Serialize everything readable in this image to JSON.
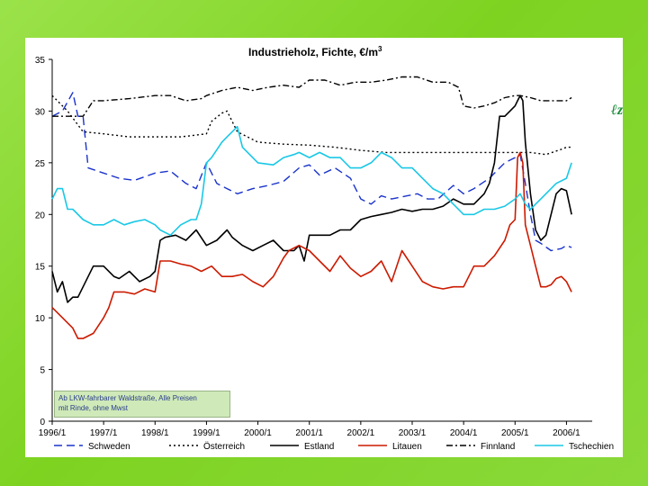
{
  "chart_data": {
    "type": "line",
    "title": "Industrieholz, Fichte, €/m",
    "title_superscript": "3",
    "xlabel": "",
    "ylabel": "",
    "ylim": [
      0,
      35
    ],
    "yticks": [
      0,
      5,
      10,
      15,
      20,
      25,
      30,
      35
    ],
    "xlim": [
      1996.0,
      2006.5
    ],
    "xticks": [
      {
        "value": 1996.0,
        "label": "1996/1"
      },
      {
        "value": 1997.0,
        "label": "1997/1"
      },
      {
        "value": 1998.0,
        "label": "1998/1"
      },
      {
        "value": 1999.0,
        "label": "1999/1"
      },
      {
        "value": 2000.0,
        "label": "2000/1"
      },
      {
        "value": 2001.0,
        "label": "2001/1"
      },
      {
        "value": 2002.0,
        "label": "2002/1"
      },
      {
        "value": 2003.0,
        "label": "2003/1"
      },
      {
        "value": 2004.0,
        "label": "2004/1"
      },
      {
        "value": 2005.0,
        "label": "2005/1"
      },
      {
        "value": 2006.0,
        "label": "2006/1"
      }
    ],
    "legend_position": "bottom",
    "grid": false,
    "series": [
      {
        "name": "Schweden",
        "color": "#1a33cc",
        "style": "dashed",
        "x": [
          1996.0,
          1996.2,
          1996.4,
          1996.5,
          1996.6,
          1996.7,
          1997.0,
          1997.3,
          1997.6,
          1998.0,
          1998.3,
          1998.6,
          1998.8,
          1999.0,
          1999.2,
          1999.4,
          1999.6,
          1999.9,
          2000.2,
          2000.5,
          2000.8,
          2001.0,
          2001.2,
          2001.5,
          2001.8,
          2002.0,
          2002.2,
          2002.4,
          2002.6,
          2002.9,
          2003.1,
          2003.3,
          2003.5,
          2003.8,
          2004.0,
          2004.2,
          2004.5,
          2004.8,
          2005.0,
          2005.1,
          2005.2,
          2005.3,
          2005.4,
          2005.5,
          2005.7,
          2005.9,
          2006.0,
          2006.1
        ],
        "values": [
          29.5,
          30.0,
          31.8,
          29.5,
          29.5,
          24.5,
          24.0,
          23.5,
          23.3,
          24.0,
          24.2,
          23.0,
          22.5,
          25.0,
          23.0,
          22.5,
          22.0,
          22.5,
          22.8,
          23.2,
          24.5,
          24.8,
          23.8,
          24.5,
          23.5,
          21.5,
          21.0,
          21.8,
          21.5,
          21.8,
          22.0,
          21.5,
          21.5,
          22.8,
          22.0,
          22.5,
          23.5,
          25.0,
          25.5,
          25.8,
          23.0,
          20.0,
          17.5,
          17.2,
          16.5,
          16.7,
          17.0,
          16.8
        ]
      },
      {
        "name": "Österreich",
        "color": "#000000",
        "style": "dotted",
        "x": [
          1996.0,
          1996.3,
          1996.6,
          1997.0,
          1997.5,
          1998.0,
          1998.5,
          1999.0,
          1999.1,
          1999.3,
          1999.4,
          1999.6,
          2000.0,
          2000.5,
          2001.0,
          2001.5,
          2002.0,
          2002.5,
          2003.0,
          2003.5,
          2004.0,
          2004.5,
          2005.0,
          2005.3,
          2005.6,
          2005.9,
          2006.0,
          2006.1
        ],
        "values": [
          31.5,
          30.0,
          28.0,
          27.8,
          27.5,
          27.5,
          27.5,
          27.8,
          29.0,
          29.8,
          30.0,
          28.0,
          27.0,
          26.8,
          26.7,
          26.5,
          26.2,
          26.0,
          26.0,
          26.0,
          26.0,
          26.0,
          26.0,
          26.0,
          25.8,
          26.3,
          26.5,
          26.5
        ]
      },
      {
        "name": "Estland",
        "color": "#000000",
        "style": "solid",
        "x": [
          1996.0,
          1996.1,
          1996.2,
          1996.3,
          1996.4,
          1996.5,
          1996.6,
          1996.8,
          1997.0,
          1997.2,
          1997.3,
          1997.5,
          1997.7,
          1997.9,
          1998.0,
          1998.1,
          1998.2,
          1998.4,
          1998.6,
          1998.8,
          1999.0,
          1999.2,
          1999.4,
          1999.5,
          1999.7,
          1999.9,
          2000.1,
          2000.3,
          2000.5,
          2000.7,
          2000.8,
          2000.9,
          2001.0,
          2001.2,
          2001.4,
          2001.6,
          2001.8,
          2002.0,
          2002.2,
          2002.4,
          2002.6,
          2002.8,
          2003.0,
          2003.2,
          2003.4,
          2003.6,
          2003.8,
          2004.0,
          2004.2,
          2004.4,
          2004.5,
          2004.6,
          2004.7,
          2004.8,
          2004.9,
          2005.0,
          2005.05,
          2005.1,
          2005.15,
          2005.2,
          2005.3,
          2005.4,
          2005.5,
          2005.6,
          2005.7,
          2005.8,
          2005.9,
          2006.0,
          2006.1
        ],
        "values": [
          14.5,
          12.5,
          13.5,
          11.5,
          12.0,
          12.0,
          13.0,
          15.0,
          15.0,
          14.0,
          13.8,
          14.5,
          13.5,
          14.0,
          14.5,
          17.5,
          17.8,
          18.0,
          17.5,
          18.5,
          17.0,
          17.5,
          18.5,
          17.8,
          17.0,
          16.5,
          17.0,
          17.5,
          16.5,
          16.5,
          17.0,
          15.5,
          18.0,
          18.0,
          18.0,
          18.5,
          18.5,
          19.5,
          19.8,
          20.0,
          20.2,
          20.5,
          20.3,
          20.5,
          20.5,
          20.8,
          21.5,
          21.0,
          21.0,
          22.0,
          23.0,
          25.0,
          29.5,
          29.5,
          30.0,
          30.5,
          31.0,
          31.5,
          31.0,
          27.0,
          22.0,
          18.5,
          17.5,
          18.0,
          20.0,
          22.0,
          22.5,
          22.3,
          20.0
        ]
      },
      {
        "name": "Litauen",
        "color": "#cc1a00",
        "style": "solid",
        "x": [
          1996.0,
          1996.2,
          1996.4,
          1996.5,
          1996.6,
          1996.8,
          1997.0,
          1997.1,
          1997.2,
          1997.4,
          1997.6,
          1997.8,
          1998.0,
          1998.1,
          1998.3,
          1998.5,
          1998.7,
          1998.9,
          1999.1,
          1999.3,
          1999.5,
          1999.7,
          1999.9,
          2000.1,
          2000.3,
          2000.5,
          2000.6,
          2000.8,
          2001.0,
          2001.2,
          2001.4,
          2001.6,
          2001.8,
          2002.0,
          2002.2,
          2002.4,
          2002.6,
          2002.8,
          2003.0,
          2003.2,
          2003.4,
          2003.6,
          2003.8,
          2004.0,
          2004.2,
          2004.4,
          2004.6,
          2004.8,
          2004.9,
          2005.0,
          2005.05,
          2005.1,
          2005.15,
          2005.2,
          2005.3,
          2005.4,
          2005.5,
          2005.6,
          2005.7,
          2005.8,
          2005.9,
          2006.0,
          2006.1
        ],
        "values": [
          11.0,
          10.0,
          9.0,
          8.0,
          8.0,
          8.5,
          10.0,
          11.0,
          12.5,
          12.5,
          12.3,
          12.8,
          12.5,
          15.5,
          15.5,
          15.2,
          15.0,
          14.5,
          15.0,
          14.0,
          14.0,
          14.2,
          13.5,
          13.0,
          14.0,
          15.8,
          16.5,
          17.0,
          16.5,
          15.5,
          14.5,
          16.0,
          14.8,
          14.0,
          14.5,
          15.5,
          13.5,
          16.5,
          15.0,
          13.5,
          13.0,
          12.8,
          13.0,
          13.0,
          15.0,
          15.0,
          16.0,
          17.5,
          19.0,
          19.5,
          25.5,
          26.0,
          25.0,
          19.0,
          17.0,
          15.0,
          13.0,
          13.0,
          13.2,
          13.8,
          14.0,
          13.5,
          12.5
        ]
      },
      {
        "name": "Finnland",
        "color": "#000000",
        "style": "dash-dot",
        "x": [
          1996.0,
          1996.3,
          1996.6,
          1996.8,
          1997.0,
          1997.5,
          1998.0,
          1998.3,
          1998.6,
          1998.9,
          1999.0,
          1999.3,
          1999.6,
          1999.9,
          2000.2,
          2000.5,
          2000.8,
          2001.0,
          2001.3,
          2001.6,
          2001.9,
          2002.2,
          2002.5,
          2002.8,
          2003.1,
          2003.4,
          2003.7,
          2003.9,
          2004.0,
          2004.2,
          2004.4,
          2004.6,
          2004.8,
          2005.0,
          2005.1,
          2005.3,
          2005.5,
          2005.7,
          2005.9,
          2006.0,
          2006.1
        ],
        "values": [
          29.5,
          29.5,
          29.5,
          31.0,
          31.0,
          31.2,
          31.5,
          31.5,
          31.0,
          31.2,
          31.5,
          32.0,
          32.3,
          32.0,
          32.3,
          32.5,
          32.3,
          33.0,
          33.0,
          32.5,
          32.8,
          32.8,
          33.0,
          33.3,
          33.3,
          32.8,
          32.8,
          32.3,
          30.5,
          30.3,
          30.5,
          30.8,
          31.3,
          31.5,
          31.5,
          31.3,
          31.0,
          31.0,
          31.0,
          31.0,
          31.3
        ]
      },
      {
        "name": "Tschechien",
        "color": "#1ac8e6",
        "style": "solid",
        "x": [
          1996.0,
          1996.1,
          1996.2,
          1996.3,
          1996.4,
          1996.6,
          1996.8,
          1997.0,
          1997.2,
          1997.4,
          1997.6,
          1997.8,
          1998.0,
          1998.1,
          1998.3,
          1998.5,
          1998.7,
          1998.8,
          1998.9,
          1999.0,
          1999.1,
          1999.3,
          1999.4,
          1999.5,
          1999.6,
          1999.7,
          2000.0,
          2000.3,
          2000.5,
          2000.7,
          2000.8,
          2001.0,
          2001.2,
          2001.4,
          2001.6,
          2001.8,
          2002.0,
          2002.2,
          2002.4,
          2002.6,
          2002.8,
          2003.0,
          2003.2,
          2003.4,
          2003.6,
          2003.8,
          2004.0,
          2004.2,
          2004.4,
          2004.6,
          2004.8,
          2005.0,
          2005.1,
          2005.2,
          2005.3,
          2005.4,
          2005.5,
          2005.6,
          2005.7,
          2005.8,
          2006.0,
          2006.1
        ],
        "values": [
          21.5,
          22.5,
          22.5,
          20.5,
          20.5,
          19.5,
          19.0,
          19.0,
          19.5,
          19.0,
          19.3,
          19.5,
          19.0,
          18.5,
          18.0,
          19.0,
          19.5,
          19.5,
          21.0,
          25.0,
          25.5,
          27.0,
          27.5,
          28.0,
          28.5,
          26.5,
          25.0,
          24.8,
          25.5,
          25.8,
          26.0,
          25.5,
          26.0,
          25.5,
          25.5,
          24.5,
          24.5,
          25.0,
          26.0,
          25.5,
          24.5,
          24.5,
          23.5,
          22.5,
          22.0,
          21.0,
          20.0,
          20.0,
          20.5,
          20.5,
          20.8,
          21.5,
          22.0,
          21.0,
          20.5,
          21.0,
          21.5,
          22.0,
          22.5,
          23.0,
          23.5,
          25.0
        ]
      }
    ]
  },
  "note": {
    "line1": "Ab LKW-fahrbarer Waldstraße, Alle Preisen",
    "line2": "mit Rinde, ohne Mwst"
  },
  "logo": {
    "glyph": "ℓz",
    "color": "#1a8c3a"
  }
}
